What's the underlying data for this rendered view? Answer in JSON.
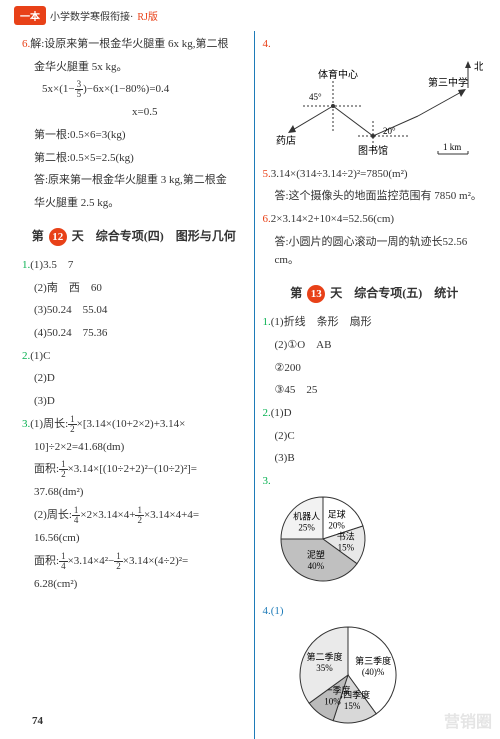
{
  "header": {
    "brand": "一本",
    "text": "小学数学寒假衔接·",
    "version": "RJ版"
  },
  "left": {
    "q6": {
      "num": "6.",
      "l1": "解:设原来第一根金华火腿重 6x kg,第二根",
      "l2": "金华火腿重 5x kg。",
      "eq1a": "5x×(1−",
      "eq1b": ")−6x×(1−80%)=0.4",
      "eq2": "x=0.5",
      "l3": "第一根:0.5×6=3(kg)",
      "l4": "第二根:0.5×5=2.5(kg)",
      "l5": "答:原来第一根金华火腿重 3 kg,第二根金",
      "l6": "华火腿重 2.5 kg。"
    },
    "day": {
      "pre": "第",
      "num": "12",
      "post": "天　综合专项(四)　图形与几何"
    },
    "q1": {
      "num": "1.",
      "a": "(1)3.5　7",
      "b": "(2)南　西　60",
      "c": "(3)50.24　55.04",
      "d": "(4)50.24　75.36"
    },
    "q2": {
      "num": "2.",
      "a": "(1)C",
      "b": "(2)D",
      "c": "(3)D"
    },
    "q3": {
      "num": "3.",
      "l1a": "(1)周长:",
      "l1b": "×[3.14×(10+2×2)+3.14×",
      "l2": "10]÷2×2=41.68(dm)",
      "l3a": "面积:",
      "l3b": "×3.14×[(10÷2+2)²−(10÷2)²]=",
      "l4": "37.68(dm²)",
      "l5a": "(2)周长:",
      "l5b": "×2×3.14×4+",
      "l5c": "×3.14×4+4=",
      "l6": "16.56(cm)",
      "l7a": "面积:",
      "l7b": "×3.14×4²−",
      "l7c": "×3.14×(4÷2)²=",
      "l8": "6.28(cm²)"
    }
  },
  "right": {
    "q4": {
      "num": "4.",
      "pie": {
        "slices": [
          {
            "label": "第三季度",
            "pct": "(40)%",
            "color": "#ffffff",
            "start": 0,
            "end": 144
          },
          {
            "label": "第四季度",
            "pct": "15%",
            "color": "#d8d8d8",
            "start": 144,
            "end": 198
          },
          {
            "label": "第一季度",
            "pct": "10%",
            "color": "#bbbbbb",
            "start": 198,
            "end": 234
          },
          {
            "label": "第二季度",
            "pct": "35%",
            "color": "#eaeaea",
            "start": 234,
            "end": 360
          }
        ],
        "r": 48
      }
    },
    "q5": {
      "num": "5.",
      "l1": "3.14×(314÷3.14÷2)²=7850(m²)",
      "l2": "答:这个摄像头的地面监控范围有 7850 m²。"
    },
    "q6": {
      "num": "6.",
      "l1": "2×3.14×2+10×4=52.56(cm)",
      "l2": "答:小圆片的圆心滚动一周的轨迹长52.56 cm。"
    },
    "day": {
      "pre": "第",
      "num": "13",
      "post": "天　综合专项(五)　统计"
    },
    "q1": {
      "num": "1.",
      "a": "(1)折线　条形　扇形",
      "b": "(2)①O　AB",
      "c": "②200",
      "d": "③45　25"
    },
    "q2": {
      "num": "2.",
      "a": "(1)D",
      "b": "(2)C",
      "c": "(3)B"
    },
    "q3": {
      "num": "3.",
      "pie": {
        "slices": [
          {
            "label": "足球",
            "pct": "20%",
            "color": "#ffffff",
            "start": 0,
            "end": 72
          },
          {
            "label": "书法",
            "pct": "15%",
            "color": "#e8e8e8",
            "start": 72,
            "end": 126
          },
          {
            "label": "泥塑",
            "pct": "40%",
            "color": "#c0c0c0",
            "start": 126,
            "end": 270
          },
          {
            "label": "机器人",
            "pct": "25%",
            "color": "#f2f2f2",
            "start": 270,
            "end": 360
          }
        ],
        "r": 42
      }
    }
  },
  "page": "74",
  "watermark": "营销圈"
}
